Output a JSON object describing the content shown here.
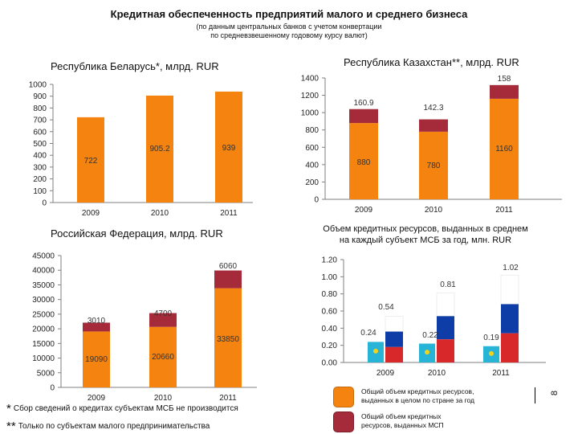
{
  "header": {
    "title": "Кредитная обеспеченность предприятий малого и среднего бизнеса",
    "subtitle_line1": "(по данным центральных банков с учетом конвертации",
    "subtitle_line2": "по средневзвешенному годовому курсу валют)"
  },
  "colors": {
    "orange": "#F5830F",
    "crimson": "#A62B3A",
    "blue": "#0E3DA8",
    "red": "#D8282A",
    "flag": "#27B4D6"
  },
  "chart_data": [
    {
      "id": "belarus",
      "type": "bar",
      "title": "Республика Беларусь*, млрд. RUR",
      "categories": [
        "2009",
        "2010",
        "2011"
      ],
      "series": [
        {
          "name": "Общий объем кредитных ресурсов, выданных в целом по стране за год",
          "values": [
            722,
            905.2,
            939
          ]
        }
      ],
      "value_labels": [
        "722",
        "905.2",
        "939"
      ],
      "ylim": [
        0,
        1000
      ],
      "yticks": [
        0,
        100,
        200,
        300,
        400,
        500,
        600,
        700,
        800,
        900,
        1000
      ]
    },
    {
      "id": "kazakhstan",
      "type": "bar",
      "title": "Республика Казахстан**, млрд. RUR",
      "stacked": true,
      "categories": [
        "2009",
        "2010",
        "2011"
      ],
      "series": [
        {
          "name": "Общий объем кредитных ресурсов, выданных в целом по стране за год",
          "values": [
            880,
            780,
            1160
          ],
          "labels": [
            "880",
            "780",
            "1160"
          ]
        },
        {
          "name": "Общий объем кредитных ресурсов, выданных МСП",
          "values": [
            160.9,
            142.3,
            158
          ],
          "labels": [
            "160.9",
            "142.3",
            "158"
          ]
        }
      ],
      "ylim": [
        0,
        1400
      ],
      "yticks": [
        0,
        200,
        400,
        600,
        800,
        1000,
        1200,
        1400
      ]
    },
    {
      "id": "russia",
      "type": "bar",
      "title": "Российская Федерация, млрд. RUR",
      "stacked": true,
      "categories": [
        "2009",
        "2010",
        "2011"
      ],
      "series": [
        {
          "name": "Общий объем кредитных ресурсов, выданных в целом по стране за год",
          "values": [
            19090,
            20660,
            33850
          ],
          "labels": [
            "19090",
            "20660",
            "33850"
          ]
        },
        {
          "name": "Общий объем кредитных ресурсов, выданных МСП",
          "values": [
            3010,
            4700,
            6060
          ],
          "labels": [
            "3010",
            "4700",
            "6060"
          ]
        }
      ],
      "ylim": [
        0,
        45000
      ],
      "yticks": [
        0,
        5000,
        10000,
        15000,
        20000,
        25000,
        30000,
        35000,
        40000,
        45000
      ]
    },
    {
      "id": "per_subject",
      "type": "bar",
      "title": "Объем кредитных ресурсов, выданных в среднем на каждый субъект МСБ за год, млн. RUR",
      "title_line1": "Объем кредитных ресурсов, выданных в среднем",
      "title_line2": "на каждый субъект МСБ за год, млн. RUR",
      "categories": [
        "2009",
        "2010",
        "2011"
      ],
      "series": [
        {
          "name": "Российская Федерация",
          "values": [
            0.54,
            0.81,
            1.02
          ],
          "labels": [
            "0.54",
            "0.81",
            "1.02"
          ]
        },
        {
          "name": "Республика Казахстан",
          "values": [
            0.24,
            0.22,
            0.19
          ],
          "labels": [
            "0.24",
            "0.22",
            "0.19"
          ]
        }
      ],
      "ylim": [
        0,
        1.2
      ],
      "yticks": [
        "0.00",
        "0.20",
        "0.40",
        "0.60",
        "0.80",
        "1.00",
        "1.20"
      ]
    }
  ],
  "legend": {
    "total_label": "Общий объем кредитных ресурсов, выданных в целом по стране за год",
    "sme_label": "Общий объем кредитных ресурсов, выданных МСП"
  },
  "footnotes": {
    "star1": "*",
    "note1": "Сбор сведений о кредитах субъектам МСБ не производится",
    "star2": "**",
    "note2": "Только по субъектам малого предпринимательства"
  },
  "page_number": "8"
}
